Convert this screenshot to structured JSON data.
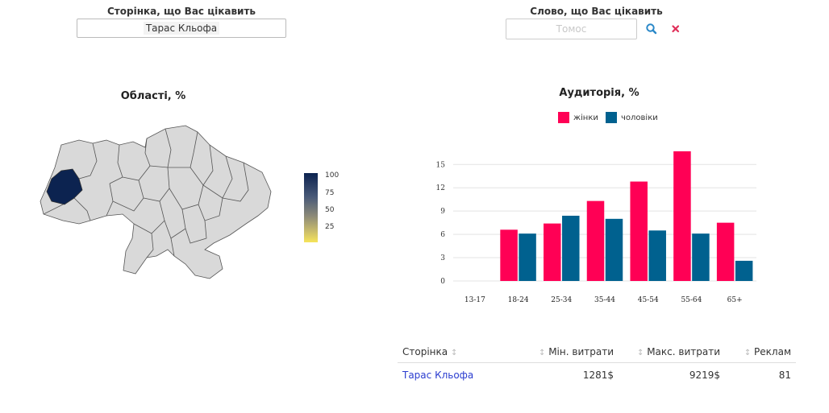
{
  "controls": {
    "page_label": "Сторінка, що Вас цікавить",
    "page_value": "Тарас Кльофа",
    "word_label": "Слово, що Вас цікавить",
    "word_placeholder": "Томос",
    "search_icon": "search-icon",
    "clear_icon": "close-icon"
  },
  "map": {
    "title": "Області, %",
    "highlight_color": "#0c2350",
    "base_color": "#d9d9d9",
    "colorbar_ticks": [
      "100",
      "75",
      "50",
      "25"
    ]
  },
  "chart_data": {
    "type": "bar",
    "title": "Аудиторія, %",
    "categories": [
      "13-17",
      "18-24",
      "25-34",
      "35-44",
      "45-54",
      "55-64",
      "65+"
    ],
    "series": [
      {
        "name": "жінки",
        "color": "#ff0055",
        "values": [
          0,
          6.6,
          7.4,
          10.3,
          12.8,
          16.7,
          7.5
        ]
      },
      {
        "name": "чоловіки",
        "color": "#00618f",
        "values": [
          0,
          6.1,
          8.4,
          8.0,
          6.5,
          6.1,
          2.6
        ]
      }
    ],
    "y_ticks": [
      0,
      3,
      6,
      9,
      12,
      15
    ],
    "ylim": [
      0,
      17
    ],
    "legend": "top",
    "grid": true
  },
  "table": {
    "columns": [
      "Сторінка",
      "Мін. витрати",
      "Макс. витрати",
      "Реклам"
    ],
    "rows": [
      {
        "page": "Тарас Кльофа",
        "min": "1281$",
        "max": "9219$",
        "ads": "81"
      }
    ],
    "link_color": "#2a3ccf"
  }
}
